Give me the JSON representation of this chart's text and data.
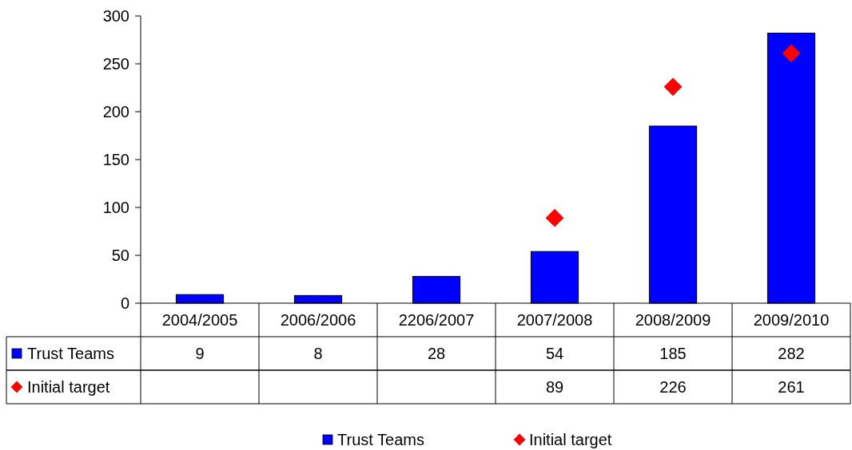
{
  "chart_data": {
    "type": "bar",
    "categories": [
      "2004/2005",
      "2006/2006",
      "2206/2007",
      "2007/2008",
      "2008/2009",
      "2009/2010"
    ],
    "series": [
      {
        "name": "Trust Teams",
        "color": "#0000ff",
        "values": [
          9,
          8,
          28,
          54,
          185,
          282
        ]
      },
      {
        "name": "Initial target",
        "type": "scatter",
        "color": "#ff0000",
        "marker": "diamond",
        "values": [
          null,
          null,
          null,
          89,
          226,
          261
        ]
      }
    ],
    "ylim": [
      0,
      300
    ],
    "yticks": [
      0,
      50,
      100,
      150,
      200,
      250,
      300
    ],
    "grid": false,
    "legend": "bottom",
    "data_labels": true
  }
}
